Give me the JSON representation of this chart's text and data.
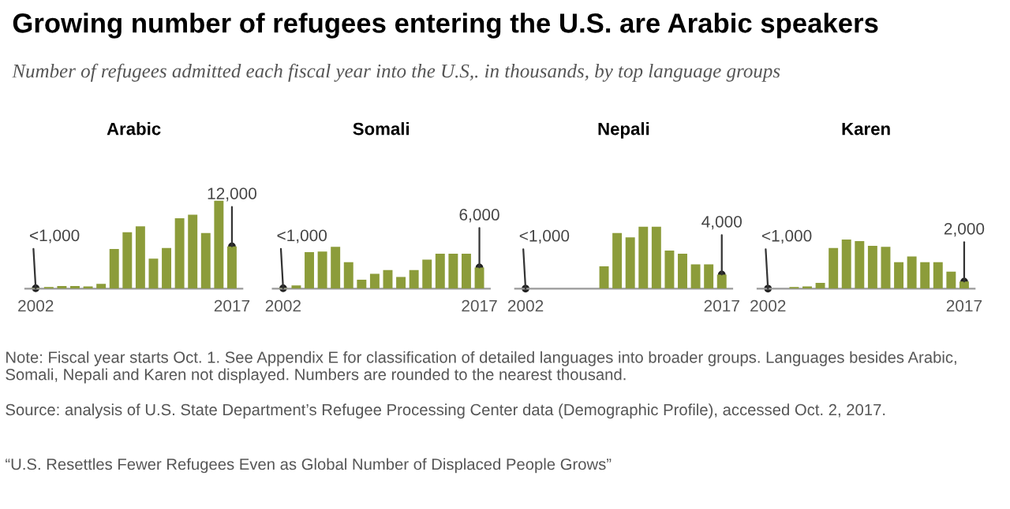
{
  "chart_data": [
    {
      "type": "bar",
      "title": "Arabic",
      "categories": [
        "2002",
        null,
        null,
        null,
        null,
        null,
        null,
        null,
        null,
        null,
        null,
        null,
        null,
        null,
        null,
        "2017"
      ],
      "values": [
        100,
        450,
        750,
        750,
        600,
        1350,
        11250,
        16000,
        17700,
        8500,
        11500,
        20000,
        21000,
        15750,
        25000,
        12000
      ],
      "value_labels": [
        "<1,000",
        null,
        null,
        null,
        null,
        null,
        null,
        null,
        null,
        null,
        null,
        null,
        null,
        null,
        null,
        "12,000"
      ],
      "color": "#8c9c3a",
      "tick_labels": "x",
      "grid": false,
      "legend": false
    },
    {
      "type": "bar",
      "title": "Somali",
      "categories": [
        "2002",
        null,
        null,
        null,
        null,
        null,
        null,
        null,
        null,
        null,
        null,
        null,
        null,
        null,
        null,
        "2017"
      ],
      "values": [
        100,
        900,
        10350,
        10500,
        11850,
        7500,
        2550,
        4200,
        5250,
        3300,
        5250,
        8250,
        9900,
        9900,
        9900,
        6000
      ],
      "value_labels": [
        "<1,000",
        null,
        null,
        null,
        null,
        null,
        null,
        null,
        null,
        null,
        null,
        null,
        null,
        null,
        null,
        "6,000"
      ],
      "color": "#8c9c3a",
      "tick_labels": "x",
      "grid": false,
      "legend": false
    },
    {
      "type": "bar",
      "title": "Nepali",
      "categories": [
        "2002",
        null,
        null,
        null,
        null,
        null,
        null,
        null,
        null,
        null,
        null,
        null,
        null,
        null,
        null,
        "2017"
      ],
      "values": [
        0,
        0,
        0,
        0,
        0,
        0,
        6300,
        15750,
        14550,
        17550,
        17550,
        10800,
        9900,
        6900,
        6900,
        4000
      ],
      "value_labels": [
        "<1,000",
        null,
        null,
        null,
        null,
        null,
        null,
        null,
        null,
        null,
        null,
        null,
        null,
        null,
        null,
        "4,000"
      ],
      "color": "#8c9c3a",
      "tick_labels": "x",
      "grid": false,
      "legend": false
    },
    {
      "type": "bar",
      "title": "Karen",
      "categories": [
        "2002",
        null,
        null,
        null,
        null,
        null,
        null,
        null,
        null,
        null,
        null,
        null,
        null,
        null,
        null,
        "2017"
      ],
      "values": [
        0,
        0,
        450,
        600,
        1650,
        11550,
        13950,
        13500,
        12150,
        11850,
        7500,
        9150,
        7500,
        7500,
        4800,
        2000
      ],
      "value_labels": [
        "<1,000",
        null,
        null,
        null,
        null,
        null,
        null,
        null,
        null,
        null,
        null,
        null,
        null,
        null,
        null,
        "2,000"
      ],
      "color": "#8c9c3a",
      "tick_labels": "x",
      "grid": false,
      "legend": false,
      "annotations": [
        "Note: Fiscal year starts Oct. 1. See Appendix E for classification of detailed languages into broader groups. Languages besides Arabic, Somali, Nepali and Karen not displayed. Numbers are rounded to the nearest thousand.",
        "Source: analysis of U.S. State Department’s Refugee Processing Center data (Demographic Profile), accessed Oct. 2, 2017.",
        "“U.S. Resettles Fewer Refugees Even as Global Number of Displaced People Grows”"
      ]
    },
    {
      "type": "other",
      "title": "Growing number of refugees entering the U.S. are Arabic speakers",
      "subtitle": "Number of refugees admitted each fiscal year into the U.S,. in thousands, by top language groups"
    }
  ]
}
